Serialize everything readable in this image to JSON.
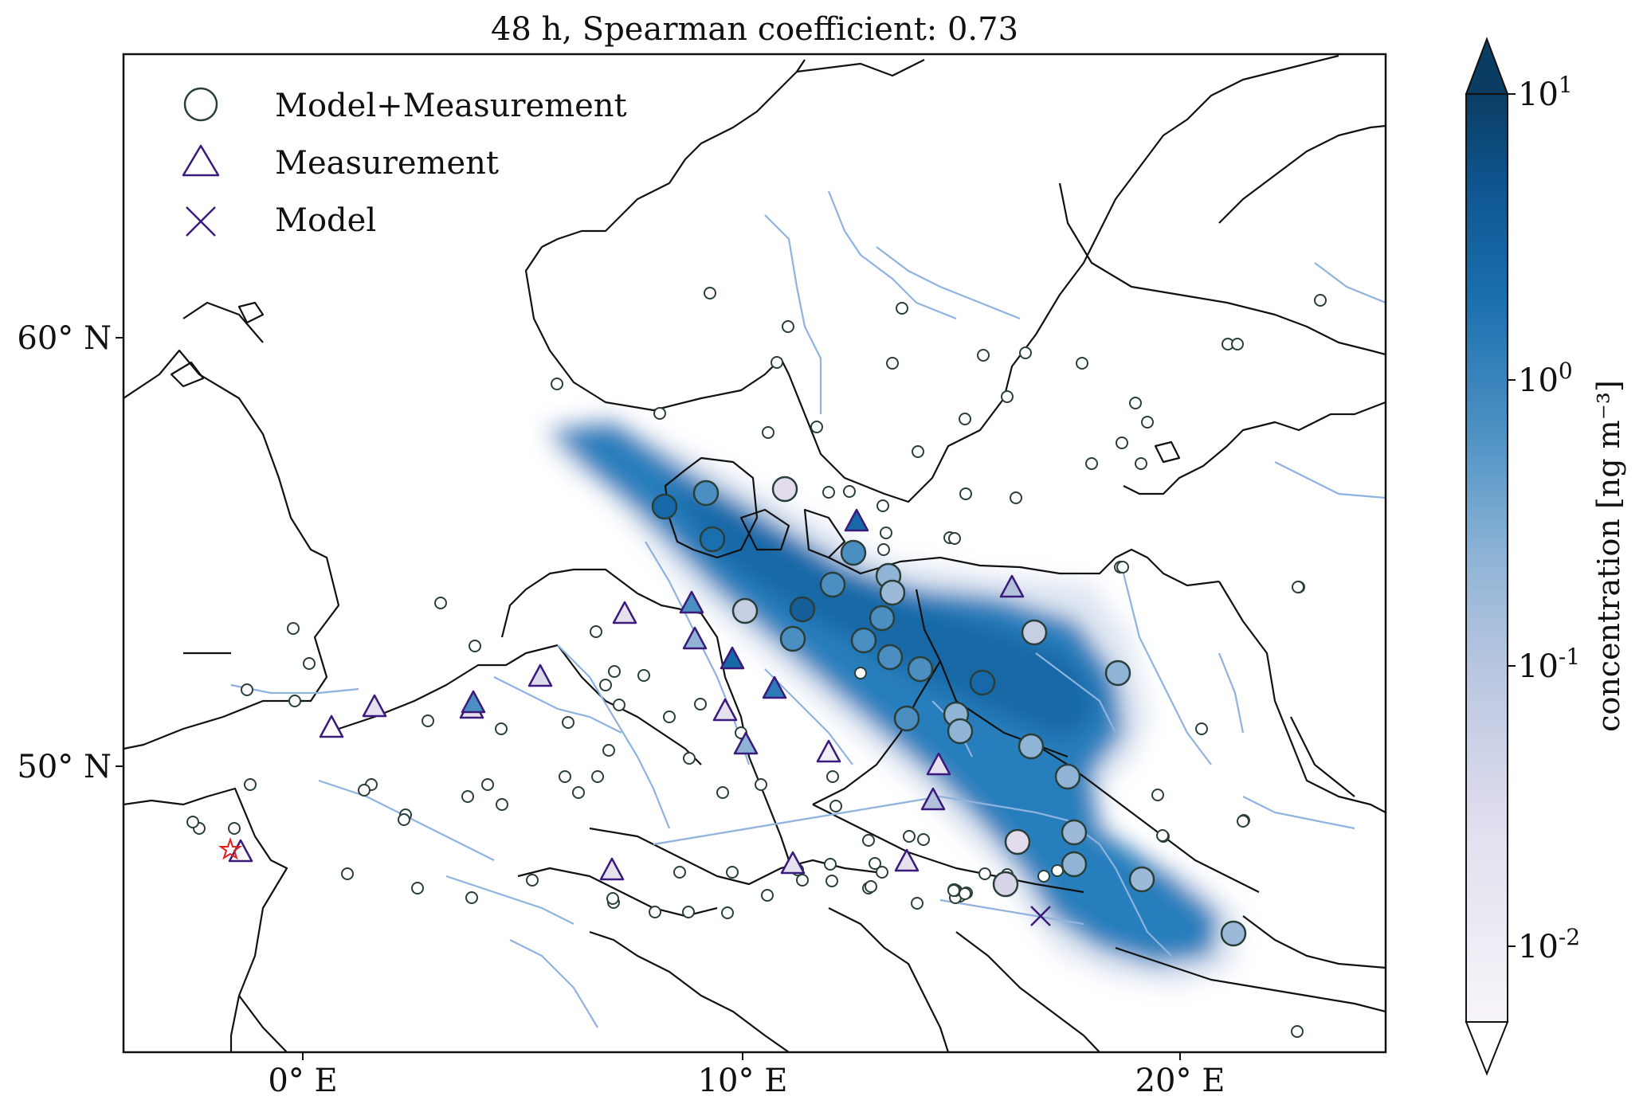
{
  "figure": {
    "title": "48 h, Spearman coefficient: 0.73",
    "x_ticks": [
      "0° E",
      "10° E",
      "20° E"
    ],
    "y_ticks": [
      "60° N",
      "50° N"
    ],
    "colorbar": {
      "label": "concentration [ng m⁻³]",
      "ticks": [
        {
          "base": "10",
          "exp": "1",
          "value": 10
        },
        {
          "base": "10",
          "exp": "0",
          "value": 1
        },
        {
          "base": "10",
          "exp": "-1",
          "value": 0.1
        },
        {
          "base": "10",
          "exp": "-2",
          "value": 0.01
        }
      ],
      "min": 0.005,
      "max": 10,
      "scale": "log",
      "colors": [
        "#f7f4f9",
        "#d3d3e8",
        "#9cb9d9",
        "#4f93c5",
        "#1a6fae",
        "#0b4d7e",
        "#083656"
      ]
    },
    "legend": {
      "position": "top-left",
      "items": [
        {
          "label": "Model+Measurement",
          "marker": "circle"
        },
        {
          "label": "Measurement",
          "marker": "triangle"
        },
        {
          "label": "Model",
          "marker": "x"
        }
      ]
    },
    "colors": {
      "coast": "#111111",
      "rivers": "#8fb3de",
      "plume": "#1a6fae",
      "circle_edge": "#2a3f3a",
      "triangle_edge": "#3a1a7a",
      "source_star": "#e02020"
    },
    "map": {
      "lon_range": [
        -4.3,
        25.2
      ],
      "lat_range": [
        43.4,
        66.3
      ]
    }
  }
}
